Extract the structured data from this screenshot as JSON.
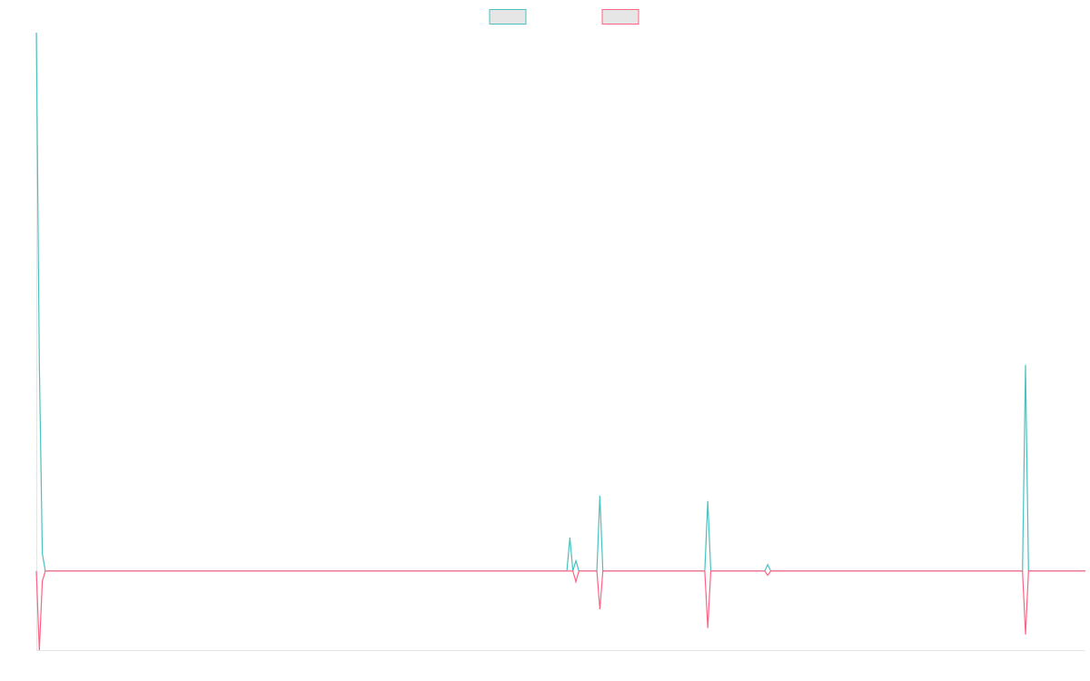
{
  "chart_data": {
    "type": "line",
    "x": [
      0,
      1,
      2,
      3,
      177,
      178,
      179,
      180,
      181,
      187,
      188,
      189,
      223,
      224,
      225,
      243,
      244,
      245,
      329,
      330,
      331,
      350
    ],
    "xlim": [
      0,
      350
    ],
    "ylim": [
      -0.147,
      1
    ],
    "series": [
      {
        "color": "#4bc0c0",
        "values": [
          1,
          0.386,
          0.032,
          0,
          0,
          0.062,
          0,
          0.019,
          0,
          0,
          0.14,
          0,
          0,
          0.13,
          0,
          0,
          0.012,
          0,
          0,
          0.383,
          0,
          0
        ]
      },
      {
        "color": "#ff6384",
        "values": [
          0,
          -0.147,
          -0.019,
          0,
          0,
          0,
          0,
          -0.02,
          0,
          0,
          -0.071,
          0,
          0,
          -0.106,
          0,
          0,
          -0.008,
          0,
          0,
          -0.118,
          0,
          0
        ]
      }
    ],
    "legend": "top"
  }
}
